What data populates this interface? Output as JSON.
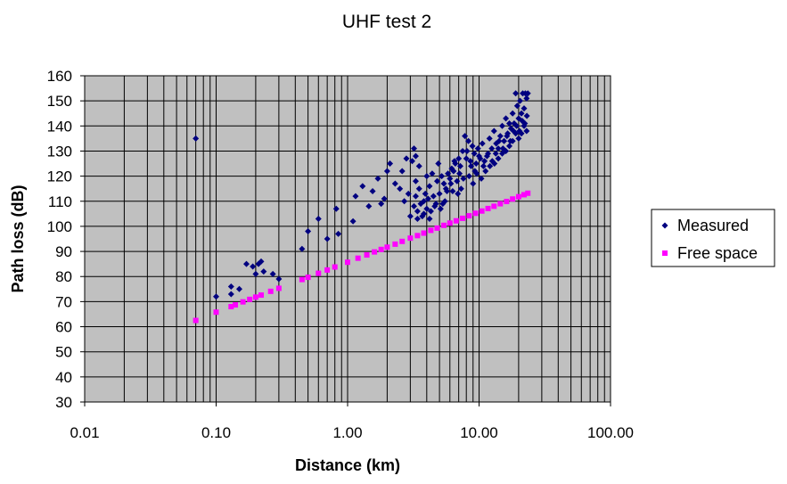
{
  "chart_data": {
    "type": "scatter",
    "title": "UHF test 2",
    "xlabel": "Distance (km)",
    "ylabel": "Path loss (dB)",
    "xscale": "log",
    "xlim": [
      0.01,
      100
    ],
    "ylim": [
      30,
      160
    ],
    "xticks": [
      0.01,
      0.1,
      1,
      10,
      100
    ],
    "xtick_labels": [
      "0.01",
      "0.10",
      "1.00",
      "10.00",
      "100.00"
    ],
    "yticks": [
      30,
      40,
      50,
      60,
      70,
      80,
      90,
      100,
      110,
      120,
      130,
      140,
      150,
      160
    ],
    "ytick_labels": [
      "30",
      "40",
      "50",
      "60",
      "70",
      "80",
      "90",
      "100",
      "110",
      "120",
      "130",
      "140",
      "150",
      "160"
    ],
    "grid": true,
    "plot_background": "#c0c0c0",
    "legend_position": "right",
    "series": [
      {
        "name": "Measured",
        "marker": "diamond",
        "color": "#000080",
        "points": [
          [
            0.07,
            135
          ],
          [
            0.1,
            72
          ],
          [
            0.13,
            76
          ],
          [
            0.13,
            73
          ],
          [
            0.15,
            75
          ],
          [
            0.17,
            85
          ],
          [
            0.19,
            84
          ],
          [
            0.2,
            81
          ],
          [
            0.21,
            85
          ],
          [
            0.22,
            86
          ],
          [
            0.23,
            82
          ],
          [
            0.27,
            81
          ],
          [
            0.3,
            79
          ],
          [
            0.45,
            91
          ],
          [
            0.5,
            98
          ],
          [
            0.6,
            103
          ],
          [
            0.7,
            95
          ],
          [
            0.82,
            107
          ],
          [
            0.85,
            97
          ],
          [
            1.1,
            102
          ],
          [
            1.15,
            112
          ],
          [
            1.3,
            116
          ],
          [
            1.45,
            108
          ],
          [
            1.55,
            114
          ],
          [
            1.7,
            119
          ],
          [
            1.8,
            109
          ],
          [
            1.9,
            111
          ],
          [
            2.0,
            122
          ],
          [
            2.1,
            125
          ],
          [
            2.3,
            117
          ],
          [
            2.5,
            115
          ],
          [
            2.6,
            122
          ],
          [
            2.7,
            110
          ],
          [
            2.8,
            127
          ],
          [
            2.9,
            113
          ],
          [
            3.1,
            126
          ],
          [
            3.2,
            131
          ],
          [
            3.3,
            128
          ],
          [
            3.2,
            108
          ],
          [
            3.3,
            112
          ],
          [
            3.4,
            106
          ],
          [
            3.5,
            115
          ],
          [
            3.6,
            109
          ],
          [
            3.7,
            104
          ],
          [
            3.8,
            110
          ],
          [
            3.9,
            113
          ],
          [
            4.0,
            107
          ],
          [
            4.1,
            111
          ],
          [
            4.2,
            116
          ],
          [
            4.3,
            106
          ],
          [
            4.5,
            112
          ],
          [
            4.6,
            108
          ],
          [
            4.8,
            118
          ],
          [
            5.0,
            113
          ],
          [
            5.2,
            120
          ],
          [
            5.4,
            117
          ],
          [
            5.6,
            115
          ],
          [
            5.8,
            121
          ],
          [
            6.0,
            119
          ],
          [
            6.2,
            123
          ],
          [
            6.4,
            122
          ],
          [
            6.6,
            125
          ],
          [
            6.8,
            118
          ],
          [
            7.0,
            127
          ],
          [
            7.2,
            124
          ],
          [
            7.5,
            130
          ],
          [
            7.8,
            136
          ],
          [
            8.0,
            127
          ],
          [
            8.3,
            134
          ],
          [
            8.6,
            126
          ],
          [
            8.9,
            132
          ],
          [
            9.2,
            129
          ],
          [
            9.5,
            125
          ],
          [
            9.8,
            131
          ],
          [
            10.2,
            127
          ],
          [
            10.6,
            133
          ],
          [
            11,
            126
          ],
          [
            11.5,
            128
          ],
          [
            12,
            135
          ],
          [
            12.5,
            131
          ],
          [
            13,
            138
          ],
          [
            13.5,
            133
          ],
          [
            14,
            131
          ],
          [
            14.5,
            136
          ],
          [
            15,
            140
          ],
          [
            15.5,
            134
          ],
          [
            16,
            143
          ],
          [
            16.5,
            137
          ],
          [
            17,
            141
          ],
          [
            17.5,
            139
          ],
          [
            18,
            145
          ],
          [
            18.5,
            141
          ],
          [
            19,
            153
          ],
          [
            19.5,
            148
          ],
          [
            20,
            143
          ],
          [
            20.5,
            150
          ],
          [
            21,
            145
          ],
          [
            21.5,
            153
          ],
          [
            22,
            147
          ],
          [
            22.5,
            153
          ],
          [
            23,
            151
          ],
          [
            23.5,
            153
          ],
          [
            3.3,
            118
          ],
          [
            3.5,
            124
          ],
          [
            4.0,
            120
          ],
          [
            4.4,
            121
          ],
          [
            4.9,
            125
          ],
          [
            5.3,
            109
          ],
          [
            5.7,
            114
          ],
          [
            6.1,
            117
          ],
          [
            6.5,
            126
          ],
          [
            7.1,
            121
          ],
          [
            7.6,
            119
          ],
          [
            8.1,
            130
          ],
          [
            8.7,
            124
          ],
          [
            9.3,
            122
          ],
          [
            10,
            128
          ],
          [
            10.8,
            124
          ],
          [
            11.7,
            129
          ],
          [
            12.6,
            126
          ],
          [
            13.4,
            129
          ],
          [
            14.2,
            134
          ],
          [
            15.2,
            131
          ],
          [
            16.3,
            136
          ],
          [
            17.3,
            134
          ],
          [
            18.3,
            138
          ],
          [
            19.3,
            140
          ],
          [
            20.3,
            138
          ],
          [
            21.3,
            142
          ],
          [
            22.3,
            141
          ],
          [
            23.1,
            144
          ],
          [
            3.0,
            104
          ],
          [
            3.4,
            103
          ],
          [
            3.8,
            105
          ],
          [
            4.2,
            103
          ],
          [
            4.7,
            109
          ],
          [
            5.1,
            107
          ],
          [
            5.5,
            110
          ],
          [
            6.3,
            114
          ],
          [
            6.9,
            113
          ],
          [
            7.3,
            115
          ],
          [
            8.4,
            120
          ],
          [
            9.0,
            117
          ],
          [
            9.6,
            121
          ],
          [
            10.4,
            119
          ],
          [
            11.2,
            122
          ],
          [
            12.1,
            124
          ],
          [
            13.1,
            125
          ],
          [
            14.0,
            127
          ],
          [
            15.0,
            129
          ],
          [
            16.0,
            130
          ],
          [
            17.0,
            132
          ],
          [
            18.0,
            134
          ],
          [
            19.0,
            137
          ],
          [
            20.0,
            135
          ],
          [
            21.0,
            137
          ],
          [
            22.0,
            140
          ],
          [
            23.0,
            138
          ]
        ]
      },
      {
        "name": "Free space",
        "marker": "square",
        "color": "#ff00ff",
        "points": [
          [
            0.07,
            62.5
          ],
          [
            0.1,
            65.8
          ],
          [
            0.13,
            68
          ],
          [
            0.14,
            68.7
          ],
          [
            0.16,
            69.9
          ],
          [
            0.18,
            70.9
          ],
          [
            0.2,
            71.8
          ],
          [
            0.22,
            72.6
          ],
          [
            0.26,
            74.1
          ],
          [
            0.3,
            75.3
          ],
          [
            0.45,
            78.8
          ],
          [
            0.5,
            79.7
          ],
          [
            0.6,
            81.3
          ],
          [
            0.7,
            82.6
          ],
          [
            0.8,
            83.8
          ],
          [
            1.0,
            85.7
          ],
          [
            1.2,
            87.3
          ],
          [
            1.4,
            88.6
          ],
          [
            1.6,
            89.8
          ],
          [
            1.8,
            90.8
          ],
          [
            2.0,
            91.7
          ],
          [
            2.3,
            92.9
          ],
          [
            2.6,
            94.0
          ],
          [
            3.0,
            95.3
          ],
          [
            3.4,
            96.3
          ],
          [
            3.8,
            97.3
          ],
          [
            4.3,
            98.4
          ],
          [
            4.8,
            99.3
          ],
          [
            5.4,
            100.4
          ],
          [
            6.0,
            101.3
          ],
          [
            6.7,
            102.2
          ],
          [
            7.5,
            103.2
          ],
          [
            8.4,
            104.2
          ],
          [
            9.4,
            105.2
          ],
          [
            10.5,
            106.1
          ],
          [
            11.7,
            107.1
          ],
          [
            13.0,
            108.0
          ],
          [
            14.5,
            109.0
          ],
          [
            16.2,
            109.9
          ],
          [
            18.0,
            110.9
          ],
          [
            20.0,
            111.8
          ],
          [
            22.0,
            112.6
          ],
          [
            23.5,
            113.2
          ]
        ]
      }
    ]
  }
}
